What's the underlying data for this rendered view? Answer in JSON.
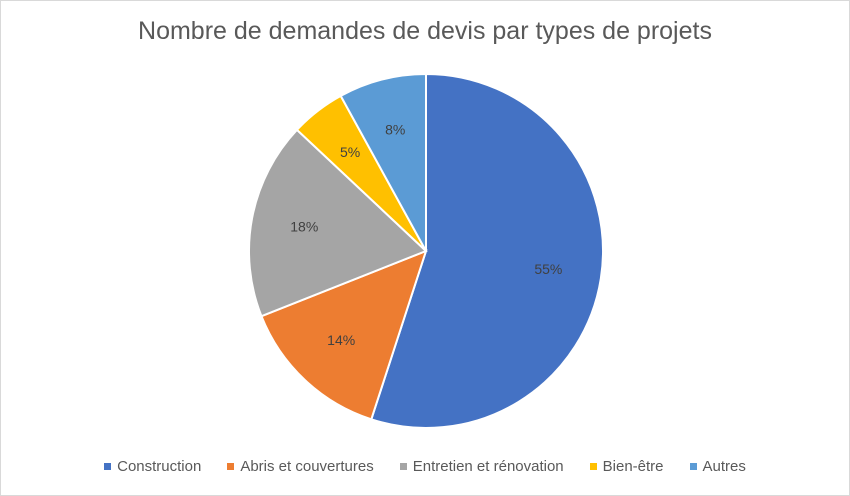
{
  "chart_data": {
    "type": "pie",
    "title": "Nombre de demandes de devis par types de projets",
    "categories": [
      "Construction",
      "Abris et couvertures",
      "Entretien et rénovation",
      "Bien-être",
      "Autres"
    ],
    "values": [
      55,
      14,
      18,
      5,
      8
    ],
    "data_labels": [
      "55%",
      "14%",
      "18%",
      "5%",
      "8%"
    ],
    "colors": [
      "#4472C4",
      "#ED7D31",
      "#A5A5A5",
      "#FFC000",
      "#5B9BD5"
    ],
    "legend_position": "bottom"
  }
}
